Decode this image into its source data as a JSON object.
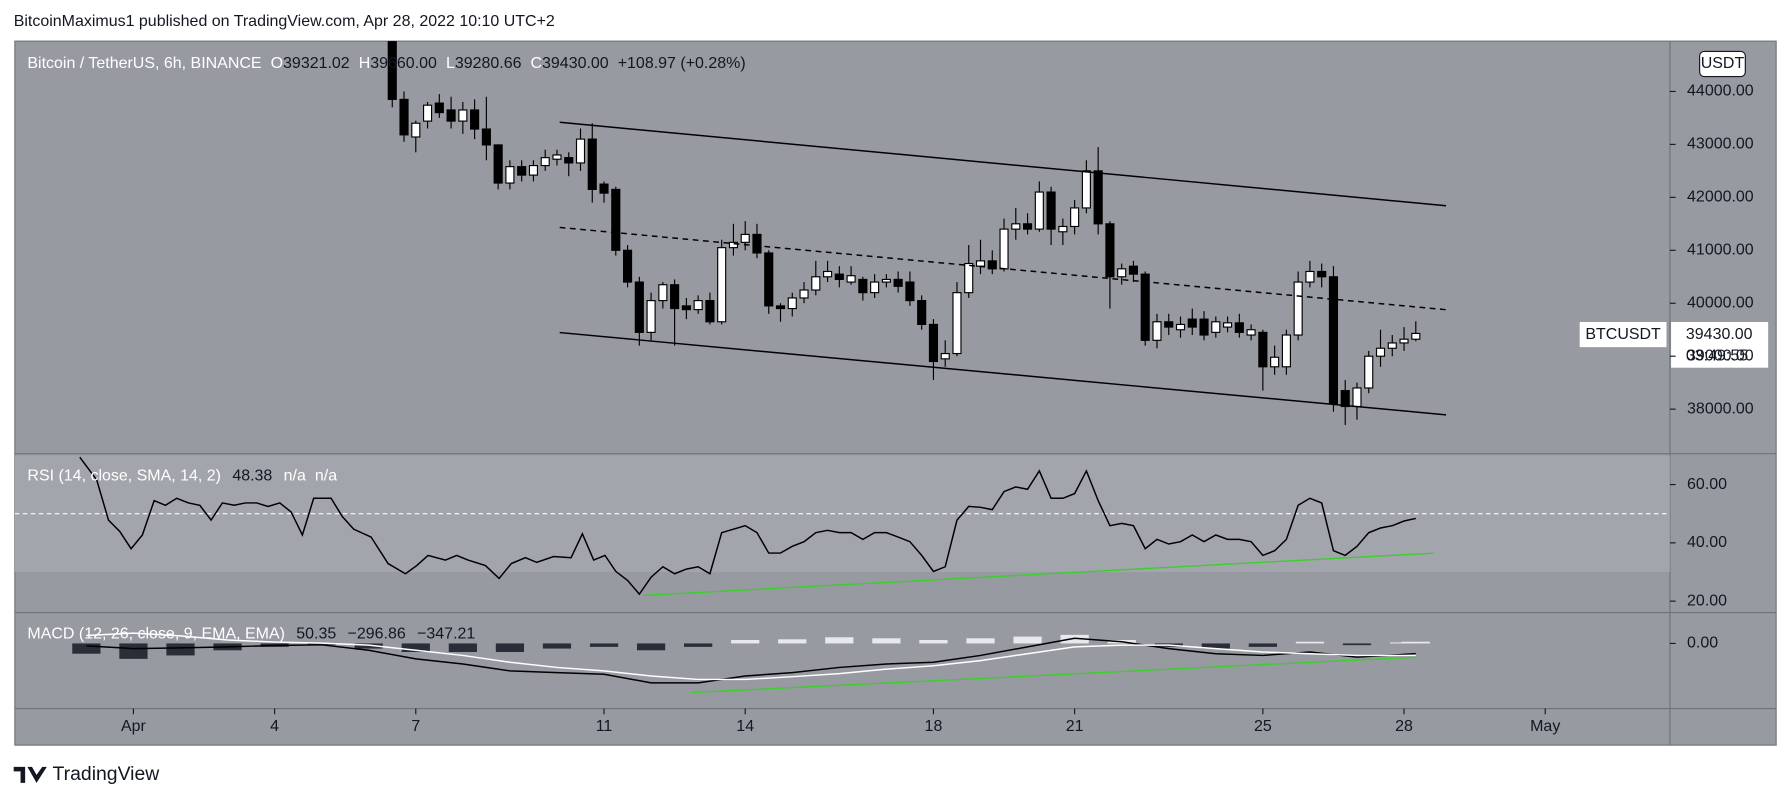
{
  "header": {
    "attribution": "BitcoinMaximus1 published on TradingView.com, Apr 28, 2022 10:10 UTC+2"
  },
  "footer": {
    "brand": "TradingView"
  },
  "chart_data": [
    {
      "type": "candlestick",
      "title": "Bitcoin / TetherUS, 6h, BINANCE",
      "currency": "USDT",
      "ohlc_labels": [
        {
          "key": "O",
          "label": "39321.02"
        },
        {
          "key": "H",
          "label": "39660.00"
        },
        {
          "key": "L",
          "label": "39280.66"
        },
        {
          "key": "C",
          "label": "39430.00"
        }
      ],
      "change_label": "+108.97 (+0.28%)",
      "price_tag": {
        "symbol": "BTCUSDT",
        "label": "39430.00",
        "countdown": "03:49:55"
      },
      "up_color": "#ffffff",
      "down_color": "#000000",
      "xlim": [
        -1.52,
        33.65
      ],
      "ylim": [
        37180,
        44950
      ],
      "grid": false,
      "yticks": [
        {
          "value": 38000,
          "label": "38000.00"
        },
        {
          "value": 39000,
          "label": "39000.00"
        },
        {
          "value": 40000,
          "label": "40000.00"
        },
        {
          "value": 41000,
          "label": "41000.00"
        },
        {
          "value": 42000,
          "label": "42000.00"
        },
        {
          "value": 43000,
          "label": "43000.00"
        },
        {
          "value": 44000,
          "label": "44000.00"
        }
      ],
      "candles": {
        "x": [
          6.5,
          6.75,
          7,
          7.25,
          7.5,
          7.75,
          8,
          8.25,
          8.5,
          8.75,
          9,
          9.25,
          9.5,
          9.75,
          10,
          10.25,
          10.5,
          10.75,
          11,
          11.25,
          11.5,
          11.75,
          12,
          12.25,
          12.5,
          12.75,
          13,
          13.25,
          13.5,
          13.75,
          14,
          14.25,
          14.5,
          14.75,
          15,
          15.25,
          15.5,
          15.75,
          16,
          16.25,
          16.5,
          16.75,
          17,
          17.25,
          17.5,
          17.75,
          18,
          18.25,
          18.5,
          18.75,
          19,
          19.25,
          19.5,
          19.75,
          20,
          20.25,
          20.5,
          20.75,
          21,
          21.25,
          21.5,
          21.75,
          22,
          22.25,
          22.5,
          22.75,
          23,
          23.25,
          23.5,
          23.75,
          24,
          24.25,
          24.5,
          24.75,
          25,
          25.25,
          25.5,
          25.75,
          26,
          26.25,
          26.5,
          26.75,
          27,
          27.25,
          27.5,
          27.75,
          28,
          28.25
        ],
        "open": [
          45100,
          43850,
          43140,
          43440,
          43780,
          43650,
          43440,
          43650,
          43290,
          42990,
          42270,
          42580,
          42420,
          42600,
          42720,
          42750,
          42650,
          43100,
          42250,
          42150,
          41000,
          40400,
          39450,
          40050,
          40350,
          39950,
          39880,
          40050,
          39650,
          41050,
          41150,
          41300,
          40950,
          39950,
          39900,
          40100,
          40250,
          40500,
          40550,
          40400,
          40450,
          40200,
          40400,
          40450,
          40400,
          40050,
          39600,
          38950,
          39050,
          40200,
          40700,
          40800,
          40650,
          41400,
          41500,
          41400,
          42100,
          41350,
          41450,
          41800,
          42500,
          41500,
          40500,
          40700,
          40550,
          39300,
          39650,
          39500,
          39700,
          39700,
          39450,
          39550,
          39630,
          39400,
          39450,
          38800,
          38800,
          39400,
          40400,
          40600,
          40500,
          38350,
          38050,
          38400,
          39000,
          39150,
          39250,
          39321.02
        ],
        "high": [
          45300,
          44000,
          43450,
          43800,
          43950,
          43900,
          43800,
          43850,
          43900,
          43000,
          42700,
          42700,
          42700,
          42900,
          42900,
          42850,
          43300,
          43400,
          42300,
          42200,
          41100,
          40500,
          40200,
          40400,
          40450,
          40100,
          40150,
          40200,
          41200,
          41500,
          41550,
          41500,
          41000,
          40000,
          40200,
          40400,
          40800,
          40800,
          40700,
          40700,
          40500,
          40550,
          40550,
          40600,
          40600,
          40150,
          39700,
          39300,
          40400,
          41100,
          41200,
          41000,
          41600,
          41800,
          41700,
          42300,
          42200,
          41600,
          41950,
          42700,
          42950,
          41550,
          40750,
          40800,
          40600,
          39800,
          39800,
          39750,
          39900,
          39850,
          39750,
          39750,
          39800,
          39600,
          39500,
          39200,
          39500,
          40600,
          40800,
          40750,
          40700,
          38550,
          38500,
          39100,
          39500,
          39400,
          39550,
          39660
        ],
        "low": [
          43700,
          43050,
          42850,
          43300,
          43500,
          43300,
          43200,
          43100,
          42700,
          42150,
          42150,
          42300,
          42300,
          42500,
          42600,
          42400,
          42500,
          41900,
          41900,
          40900,
          40300,
          39200,
          39300,
          39900,
          39200,
          39700,
          39800,
          39600,
          39600,
          40900,
          41000,
          40850,
          39800,
          39650,
          39750,
          40000,
          40150,
          40400,
          40300,
          40350,
          40050,
          40100,
          40300,
          40200,
          39950,
          39500,
          38550,
          38800,
          39000,
          40100,
          40550,
          40550,
          40600,
          41200,
          41300,
          41350,
          41100,
          41100,
          41300,
          41700,
          41300,
          39900,
          40350,
          40400,
          39200,
          39150,
          39400,
          39350,
          39400,
          39300,
          39350,
          39450,
          39350,
          39300,
          38350,
          38650,
          38650,
          39300,
          40300,
          40300,
          37950,
          37700,
          37800,
          38300,
          38800,
          39000,
          39100,
          39280.66
        ],
        "close": [
          43850,
          43180,
          43400,
          43740,
          43600,
          43440,
          43650,
          43290,
          42990,
          42270,
          42580,
          42420,
          42600,
          42750,
          42800,
          42650,
          43100,
          42150,
          42080,
          41000,
          40400,
          39450,
          40050,
          40350,
          39900,
          39880,
          40050,
          39650,
          41050,
          41150,
          41300,
          40950,
          39950,
          39900,
          40100,
          40250,
          40500,
          40600,
          40450,
          40520,
          40200,
          40400,
          40450,
          40320,
          40050,
          39600,
          38900,
          39050,
          40200,
          40750,
          40800,
          40650,
          41400,
          41500,
          41400,
          42100,
          41400,
          41450,
          41800,
          42500,
          41500,
          40500,
          40650,
          40550,
          39300,
          39650,
          39550,
          39600,
          39550,
          39400,
          39650,
          39630,
          39450,
          39500,
          38800,
          38980,
          39400,
          40400,
          40600,
          40500,
          38100,
          38050,
          38400,
          39000,
          39150,
          39250,
          39321,
          39430
        ]
      }
    },
    {
      "type": "line",
      "title": "RSI (14, close, SMA, 14, 2)",
      "extra_labels": [
        "n/a",
        "n/a"
      ],
      "xlim": [
        -1.52,
        33.65
      ],
      "ylim": [
        16.47,
        70.2
      ],
      "grid": false,
      "yticks": [
        {
          "value": 20,
          "label": "20.00"
        },
        {
          "value": 40,
          "label": "40.00"
        },
        {
          "value": 60,
          "label": "60.00"
        }
      ],
      "band": [
        30,
        70
      ],
      "band_color": "#a2a5ab",
      "reference_line": 50,
      "x": [
        -0.14,
        0.22,
        0.47,
        0.71,
        0.95,
        1.19,
        1.44,
        1.68,
        1.92,
        2.17,
        2.41,
        2.65,
        2.89,
        3.14,
        3.38,
        3.62,
        3.86,
        4.11,
        4.35,
        4.59,
        4.83,
        5.2,
        5.44,
        5.68,
        6.05,
        6.41,
        6.78,
        7.02,
        7.26,
        7.63,
        7.87,
        8.11,
        8.48,
        8.77,
        9.03,
        9.33,
        9.57,
        9.93,
        10.3,
        10.54,
        10.78,
        11.02,
        11.25,
        11.5,
        11.75,
        12,
        12.25,
        12.5,
        12.75,
        13,
        13.25,
        13.5,
        13.75,
        14,
        14.25,
        14.5,
        14.75,
        15,
        15.25,
        15.5,
        15.75,
        16,
        16.25,
        16.5,
        16.75,
        17,
        17.25,
        17.5,
        17.75,
        18,
        18.25,
        18.5,
        18.75,
        19,
        19.25,
        19.5,
        19.75,
        20,
        20.25,
        20.5,
        20.75,
        21,
        21.25,
        21.5,
        21.75,
        22,
        22.25,
        22.5,
        22.75,
        23,
        23.25,
        23.5,
        23.75,
        24,
        24.25,
        24.5,
        24.75,
        25,
        25.25,
        25.5,
        25.75,
        26,
        26.25,
        26.5,
        26.75,
        27,
        27.25,
        27.5,
        27.75,
        28,
        28.25
      ],
      "series": [
        {
          "color": "#000000",
          "values": [
            69.4,
            61.6,
            47.8,
            43.9,
            38,
            42.7,
            54.5,
            52.9,
            55.3,
            53.7,
            52.9,
            47.8,
            53.7,
            52.9,
            53.7,
            53.7,
            52.5,
            53.7,
            50.6,
            42.7,
            55.3,
            55.3,
            49,
            44.7,
            42,
            32.9,
            29.4,
            32.2,
            35.7,
            34.1,
            35.7,
            34.1,
            32.2,
            27.8,
            32.9,
            34.9,
            33.3,
            35.3,
            34.9,
            43.1,
            34.1,
            35.7,
            30.2,
            27.1,
            22.4,
            28.2,
            31.8,
            29.4,
            31,
            31.8,
            29.4,
            43.5,
            44.7,
            45.9,
            43.5,
            36.5,
            36.5,
            38.8,
            40.4,
            43.5,
            44.3,
            43.5,
            43.5,
            41.2,
            43.5,
            43.5,
            42,
            40.4,
            35.7,
            30.2,
            31.8,
            47.8,
            52.5,
            52.2,
            51.4,
            57.6,
            59.2,
            58.4,
            64.7,
            55.3,
            55.3,
            56.9,
            64.7,
            54.5,
            45.9,
            46.7,
            45.9,
            38,
            41.2,
            39.6,
            40.4,
            42.7,
            40.4,
            42.7,
            41.2,
            41.2,
            40.4,
            35.7,
            37.3,
            41.2,
            52.9,
            55.3,
            53.7,
            37.3,
            35.7,
            38.8,
            43.5,
            45.1,
            45.9,
            47.5,
            48.38
          ]
        }
      ]
    },
    {
      "type": "combo",
      "title": "MACD (12, 26, close, 9, EMA, EMA)",
      "legend_values": [
        "50.35",
        "−296.86",
        "−347.21"
      ],
      "xlim": [
        -1.52,
        33.65
      ],
      "ylim": [
        -1900,
        867
      ],
      "grid": false,
      "yticks": [
        {
          "value": 0,
          "label": "0.00"
        }
      ],
      "xticks": [
        {
          "value": 1,
          "label": "Apr"
        },
        4,
        7,
        11,
        14,
        18,
        21,
        25,
        28,
        {
          "value": 31,
          "label": "May"
        }
      ],
      "x": [
        0,
        1,
        2,
        3,
        4,
        5,
        6,
        7,
        8,
        9,
        10,
        11,
        12,
        13,
        14,
        15,
        16,
        17,
        18,
        19,
        20,
        21,
        22,
        23,
        24,
        25,
        26,
        27,
        28,
        28.25
      ],
      "series": [
        {
          "type": "bar",
          "up_color": "#e8e9ec",
          "down_color": "#2a2e39",
          "values": [
            -300,
            -450,
            -350,
            -200,
            -100,
            -50,
            -150,
            -250,
            -250,
            -250,
            -150,
            -100,
            -200,
            -100,
            100,
            120,
            180,
            150,
            100,
            150,
            200,
            250,
            100,
            -100,
            -150,
            -100,
            50,
            -50,
            30,
            50.35
          ]
        },
        {
          "type": "line",
          "color": "#000000",
          "values": [
            -70,
            -150,
            -130,
            -100,
            -60,
            -40,
            -200,
            -450,
            -600,
            -800,
            -850,
            -900,
            -1150,
            -1150,
            -950,
            -850,
            -700,
            -600,
            -550,
            -350,
            -100,
            150,
            50,
            -150,
            -300,
            -350,
            -250,
            -400,
            -320,
            -296.86
          ]
        },
        {
          "type": "line",
          "color": "#ffffff",
          "values": [
            230,
            300,
            220,
            100,
            40,
            10,
            -50,
            -200,
            -350,
            -550,
            -700,
            -800,
            -950,
            -1050,
            -1050,
            -970,
            -880,
            -750,
            -650,
            -500,
            -300,
            -100,
            -50,
            -50,
            -150,
            -250,
            -300,
            -350,
            -350,
            -347.21
          ]
        }
      ]
    }
  ]
}
